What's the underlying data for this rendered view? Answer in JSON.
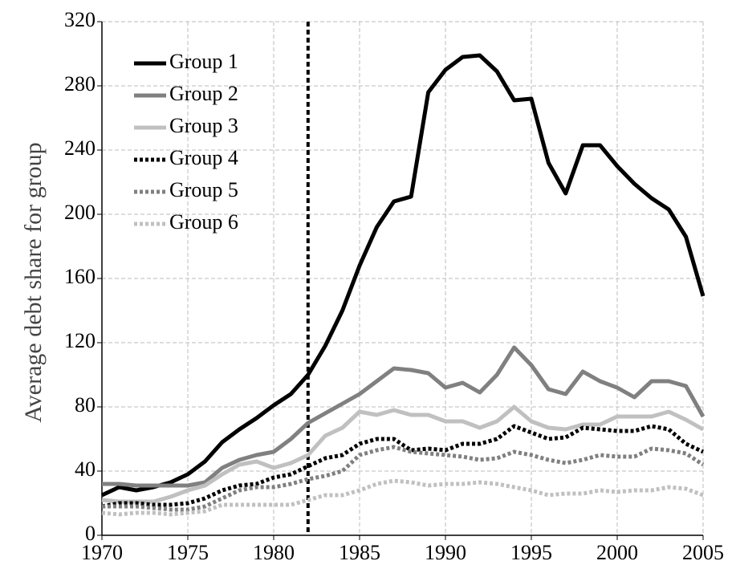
{
  "chart_data": {
    "type": "line",
    "y_label": "Average debt share for group",
    "x": [
      1970,
      1971,
      1972,
      1973,
      1974,
      1975,
      1976,
      1977,
      1978,
      1979,
      1980,
      1981,
      1982,
      1983,
      1984,
      1985,
      1986,
      1987,
      1988,
      1989,
      1990,
      1991,
      1992,
      1993,
      1994,
      1995,
      1996,
      1997,
      1998,
      1999,
      2000,
      2001,
      2002,
      2003,
      2004,
      2005
    ],
    "series": [
      {
        "name": "Group 1",
        "color": "#000000",
        "dotted": false,
        "width": 5,
        "values": [
          25,
          30,
          28,
          30,
          33,
          38,
          46,
          58,
          66,
          73,
          81,
          88,
          100,
          118,
          140,
          168,
          192,
          208,
          211,
          276,
          290,
          298,
          299,
          289,
          271,
          272,
          232,
          213,
          243,
          243,
          230,
          219,
          210,
          203,
          186,
          149
        ]
      },
      {
        "name": "Group 2",
        "color": "#808080",
        "dotted": false,
        "width": 5,
        "values": [
          32,
          32,
          31,
          31,
          31,
          31,
          33,
          42,
          47,
          50,
          52,
          60,
          70,
          76,
          82,
          88,
          96,
          104,
          103,
          101,
          92,
          95,
          89,
          100,
          117,
          106,
          91,
          88,
          102,
          96,
          92,
          86,
          96,
          96,
          93,
          74
        ]
      },
      {
        "name": "Group 3",
        "color": "#c0c0c0",
        "dotted": false,
        "width": 5,
        "values": [
          22,
          21,
          21,
          21,
          24,
          28,
          31,
          38,
          44,
          46,
          42,
          45,
          50,
          62,
          67,
          77,
          75,
          78,
          75,
          75,
          71,
          71,
          67,
          71,
          80,
          71,
          67,
          66,
          69,
          69,
          74,
          74,
          74,
          77,
          72,
          66
        ]
      },
      {
        "name": "Group 4",
        "color": "#000000",
        "dotted": true,
        "width": 5,
        "values": [
          18,
          20,
          20,
          19,
          19,
          20,
          23,
          28,
          31,
          32,
          36,
          38,
          43,
          48,
          50,
          57,
          60,
          60,
          53,
          54,
          53,
          57,
          57,
          60,
          68,
          64,
          60,
          61,
          67,
          66,
          65,
          65,
          68,
          66,
          57,
          52
        ]
      },
      {
        "name": "Group 5",
        "color": "#808080",
        "dotted": true,
        "width": 5,
        "values": [
          18,
          18,
          18,
          17,
          16,
          16,
          18,
          23,
          28,
          30,
          30,
          32,
          35,
          37,
          40,
          50,
          53,
          55,
          52,
          51,
          50,
          49,
          47,
          48,
          52,
          50,
          47,
          45,
          47,
          50,
          49,
          49,
          54,
          53,
          51,
          44
        ]
      },
      {
        "name": "Group 6",
        "color": "#c0c0c0",
        "dotted": true,
        "width": 5,
        "values": [
          14,
          13,
          14,
          14,
          13,
          14,
          15,
          19,
          19,
          19,
          19,
          19,
          22,
          25,
          25,
          28,
          32,
          34,
          33,
          31,
          32,
          32,
          33,
          32,
          30,
          28,
          25,
          26,
          26,
          28,
          27,
          28,
          28,
          30,
          29,
          25
        ]
      }
    ],
    "vline": 1982,
    "xlim": [
      1970,
      2005
    ],
    "xticks": [
      1970,
      1975,
      1980,
      1985,
      1990,
      1995,
      2000,
      2005
    ],
    "ylim": [
      0,
      320
    ],
    "yticks": [
      0,
      40,
      80,
      120,
      160,
      200,
      240,
      280,
      320
    ],
    "grid": true,
    "legend": "upper left"
  }
}
